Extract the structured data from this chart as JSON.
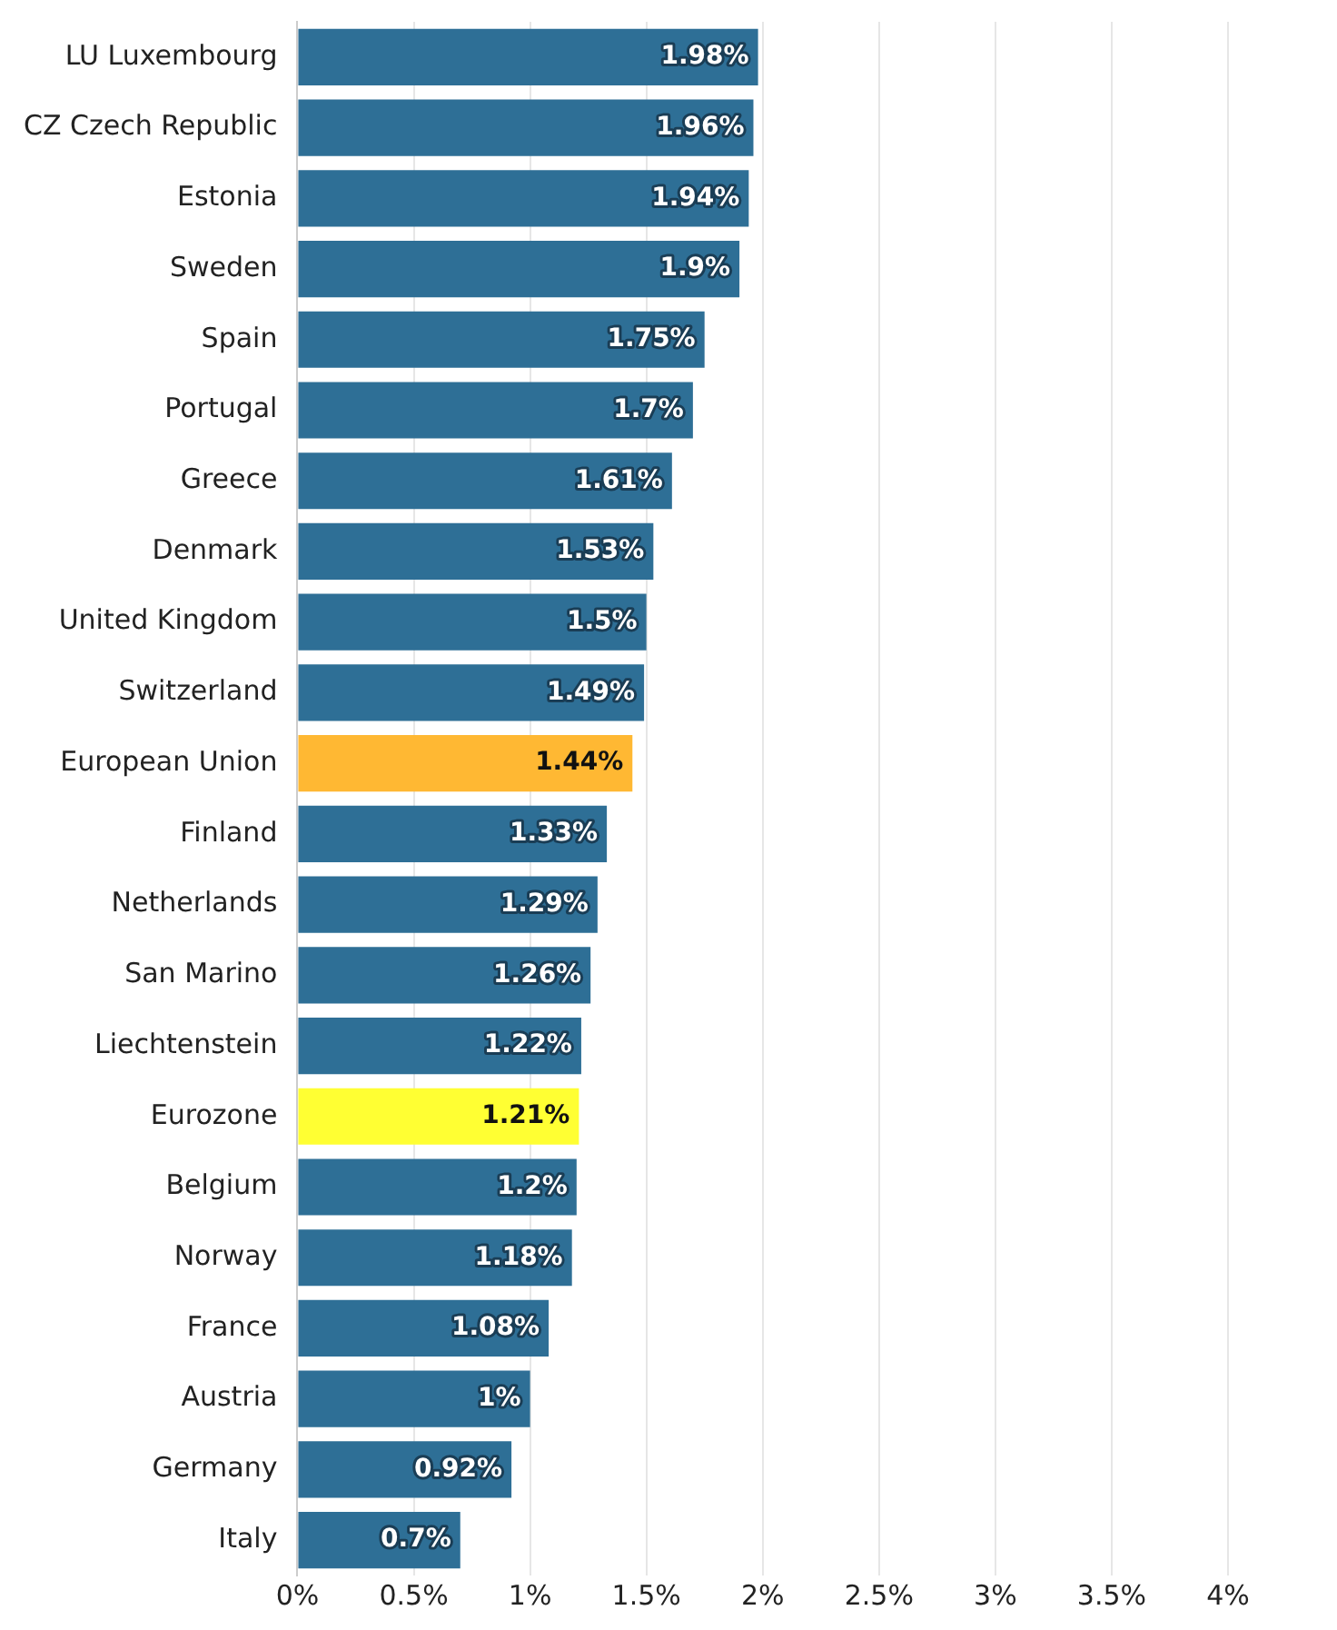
{
  "chart_data": {
    "type": "bar",
    "orientation": "horizontal",
    "categories": [
      "LU Luxembourg",
      "CZ Czech Republic",
      "Estonia",
      "Sweden",
      "Spain",
      "Portugal",
      "Greece",
      "Denmark",
      "United Kingdom",
      "Switzerland",
      "European Union",
      "Finland",
      "Netherlands",
      "San Marino",
      "Liechtenstein",
      "Eurozone",
      "Belgium",
      "Norway",
      "France",
      "Austria",
      "Germany",
      "Italy"
    ],
    "values": [
      1.98,
      1.96,
      1.94,
      1.9,
      1.75,
      1.7,
      1.61,
      1.53,
      1.5,
      1.49,
      1.44,
      1.33,
      1.29,
      1.26,
      1.22,
      1.21,
      1.2,
      1.18,
      1.08,
      1,
      0.92,
      0.7
    ],
    "value_labels": [
      "1.98%",
      "1.96%",
      "1.94%",
      "1.9%",
      "1.75%",
      "1.7%",
      "1.61%",
      "1.53%",
      "1.5%",
      "1.49%",
      "1.44%",
      "1.33%",
      "1.29%",
      "1.26%",
      "1.22%",
      "1.21%",
      "1.2%",
      "1.18%",
      "1.08%",
      "1%",
      "0.92%",
      "0.7%"
    ],
    "colors": [
      "#2e6f96",
      "#2e6f96",
      "#2e6f96",
      "#2e6f96",
      "#2e6f96",
      "#2e6f96",
      "#2e6f96",
      "#2e6f96",
      "#2e6f96",
      "#2e6f96",
      "#ffb833",
      "#2e6f96",
      "#2e6f96",
      "#2e6f96",
      "#2e6f96",
      "#ffff33",
      "#2e6f96",
      "#2e6f96",
      "#2e6f96",
      "#2e6f96",
      "#2e6f96",
      "#2e6f96"
    ],
    "xlim": [
      0,
      4
    ],
    "xticks": [
      {
        "value": 0,
        "label": "0%"
      },
      {
        "value": 0.5,
        "label": "0.5%"
      },
      {
        "value": 1,
        "label": "1%"
      },
      {
        "value": 1.5,
        "label": "1.5%"
      },
      {
        "value": 2,
        "label": "2%"
      },
      {
        "value": 2.5,
        "label": "2.5%"
      },
      {
        "value": 3,
        "label": "3%"
      },
      {
        "value": 3.5,
        "label": "3.5%"
      },
      {
        "value": 4,
        "label": "4%"
      }
    ],
    "grid": "x",
    "legend": false
  }
}
